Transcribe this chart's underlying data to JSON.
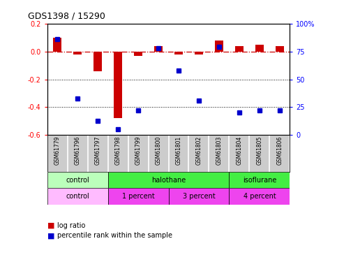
{
  "title": "GDS1398 / 15290",
  "samples": [
    "GSM61779",
    "GSM61796",
    "GSM61797",
    "GSM61798",
    "GSM61799",
    "GSM61800",
    "GSM61801",
    "GSM61802",
    "GSM61803",
    "GSM61804",
    "GSM61805",
    "GSM61806"
  ],
  "log_ratio": [
    0.1,
    -0.02,
    -0.14,
    -0.48,
    -0.03,
    0.04,
    -0.02,
    -0.02,
    0.08,
    0.04,
    0.05,
    0.04
  ],
  "percentile": [
    86,
    33,
    13,
    5,
    22,
    78,
    58,
    31,
    79,
    20,
    22,
    22
  ],
  "bar_color": "#cc0000",
  "dot_color": "#0000cc",
  "ylim_left": [
    -0.6,
    0.2
  ],
  "ylim_right": [
    0,
    100
  ],
  "yticks_left": [
    -0.6,
    -0.4,
    -0.2,
    0.0,
    0.2
  ],
  "yticks_right": [
    0,
    25,
    50,
    75,
    100
  ],
  "agent_groups": [
    {
      "label": "control",
      "start": 0,
      "end": 3,
      "color": "#bbffbb"
    },
    {
      "label": "halothane",
      "start": 3,
      "end": 9,
      "color": "#44ee44"
    },
    {
      "label": "isoflurane",
      "start": 9,
      "end": 12,
      "color": "#44ee44"
    }
  ],
  "dose_groups": [
    {
      "label": "control",
      "start": 0,
      "end": 3,
      "color": "#ffbbff"
    },
    {
      "label": "1 percent",
      "start": 3,
      "end": 6,
      "color": "#ee44ee"
    },
    {
      "label": "3 percent",
      "start": 6,
      "end": 9,
      "color": "#ee44ee"
    },
    {
      "label": "4 percent",
      "start": 9,
      "end": 12,
      "color": "#ee44ee"
    }
  ],
  "bg_color": "#ffffff",
  "sample_bg_color": "#cccccc"
}
